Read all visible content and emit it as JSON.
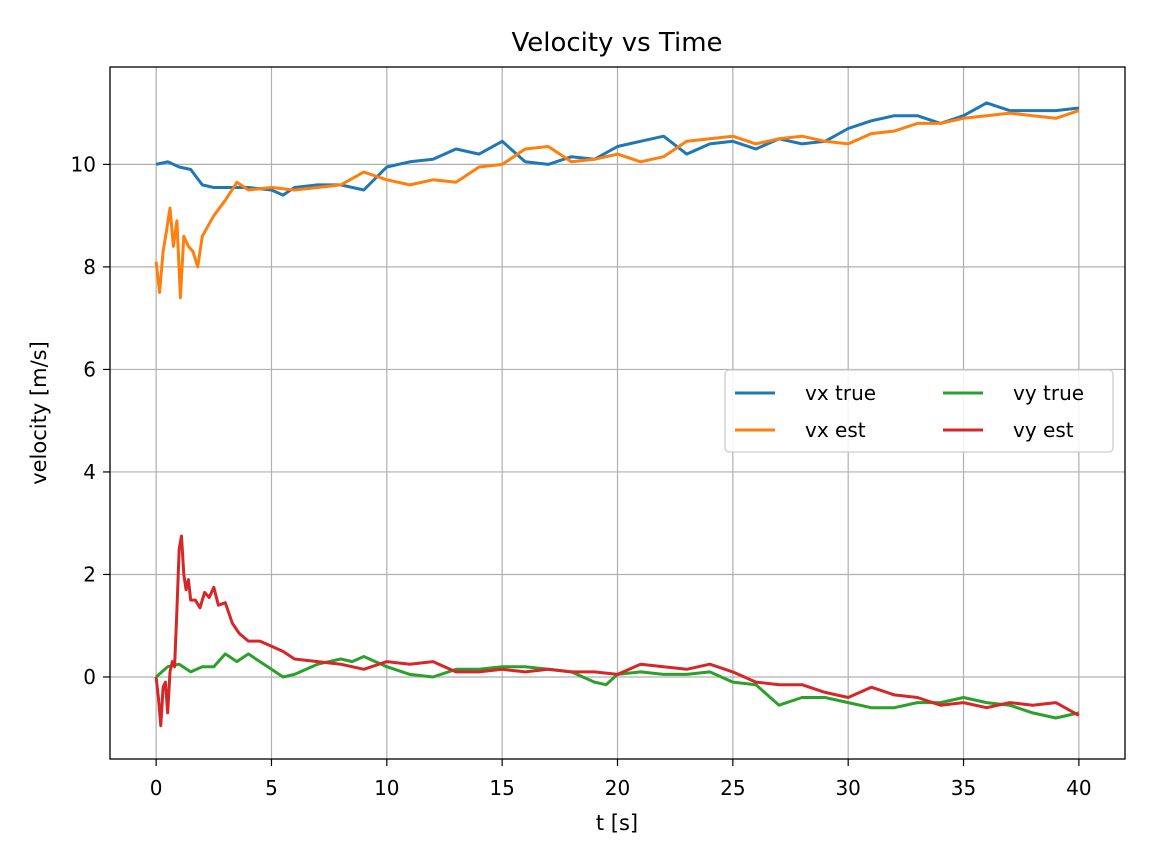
{
  "chart_data": {
    "type": "line",
    "title": "Velocity vs Time",
    "xlabel": "t [s]",
    "ylabel": "velocity [m/s]",
    "xlim": [
      -2,
      42
    ],
    "ylim": [
      -1.6,
      11.9
    ],
    "xticks": [
      0,
      5,
      10,
      15,
      20,
      25,
      30,
      35,
      40
    ],
    "yticks": [
      0,
      2,
      4,
      6,
      8,
      10
    ],
    "grid": true,
    "legend_position": "center-right",
    "legend_columns": 2,
    "series": [
      {
        "name": "vx true",
        "color": "#1f77b4",
        "x": [
          0,
          0.5,
          1,
          1.5,
          2,
          2.5,
          3,
          4,
          5,
          5.5,
          6,
          7,
          8,
          9,
          10,
          11,
          12,
          13,
          14,
          15,
          16,
          17,
          18,
          19,
          20,
          21,
          22,
          23,
          24,
          25,
          26,
          27,
          28,
          29,
          30,
          31,
          32,
          33,
          34,
          35,
          36,
          37,
          38,
          39,
          40
        ],
        "y": [
          10.0,
          10.05,
          9.95,
          9.9,
          9.6,
          9.55,
          9.55,
          9.55,
          9.5,
          9.4,
          9.55,
          9.6,
          9.6,
          9.5,
          9.95,
          10.05,
          10.1,
          10.3,
          10.2,
          10.45,
          10.05,
          10.0,
          10.15,
          10.1,
          10.35,
          10.45,
          10.55,
          10.2,
          10.4,
          10.45,
          10.3,
          10.5,
          10.4,
          10.45,
          10.7,
          10.85,
          10.95,
          10.95,
          10.8,
          10.95,
          11.2,
          11.05,
          11.05,
          11.05,
          11.1
        ]
      },
      {
        "name": "vx est",
        "color": "#ff7f0e",
        "x": [
          0,
          0.15,
          0.3,
          0.45,
          0.6,
          0.75,
          0.9,
          1.05,
          1.2,
          1.4,
          1.6,
          1.8,
          2,
          2.5,
          3,
          3.5,
          4,
          5,
          6,
          7,
          8,
          9,
          10,
          11,
          12,
          13,
          14,
          15,
          16,
          17,
          18,
          19,
          20,
          21,
          22,
          23,
          24,
          25,
          26,
          27,
          28,
          29,
          30,
          31,
          32,
          33,
          34,
          35,
          36,
          37,
          38,
          39,
          40
        ],
        "y": [
          8.1,
          7.5,
          8.3,
          8.7,
          9.15,
          8.4,
          8.9,
          7.4,
          8.6,
          8.4,
          8.3,
          8.0,
          8.6,
          9.0,
          9.3,
          9.65,
          9.5,
          9.55,
          9.5,
          9.55,
          9.6,
          9.85,
          9.7,
          9.6,
          9.7,
          9.65,
          9.95,
          10.0,
          10.3,
          10.35,
          10.05,
          10.1,
          10.2,
          10.05,
          10.15,
          10.45,
          10.5,
          10.55,
          10.4,
          10.5,
          10.55,
          10.45,
          10.4,
          10.6,
          10.65,
          10.8,
          10.8,
          10.9,
          10.95,
          11.0,
          10.95,
          10.9,
          11.05
        ]
      },
      {
        "name": "vy true",
        "color": "#2ca02c",
        "x": [
          0,
          0.5,
          1,
          1.5,
          2,
          2.5,
          3,
          3.5,
          4,
          4.5,
          5,
          5.5,
          6,
          7,
          8,
          8.5,
          9,
          10,
          11,
          12,
          13,
          14,
          15,
          16,
          17,
          18,
          19,
          19.5,
          20,
          21,
          22,
          23,
          24,
          25,
          26,
          27,
          28,
          29,
          30,
          31,
          32,
          33,
          34,
          35,
          36,
          37,
          38,
          39,
          40
        ],
        "y": [
          0.0,
          0.2,
          0.25,
          0.1,
          0.2,
          0.2,
          0.45,
          0.3,
          0.45,
          0.3,
          0.15,
          0.0,
          0.05,
          0.25,
          0.35,
          0.3,
          0.4,
          0.2,
          0.05,
          0.0,
          0.15,
          0.15,
          0.2,
          0.2,
          0.15,
          0.1,
          -0.1,
          -0.15,
          0.05,
          0.1,
          0.05,
          0.05,
          0.1,
          -0.1,
          -0.15,
          -0.55,
          -0.4,
          -0.4,
          -0.5,
          -0.6,
          -0.6,
          -0.5,
          -0.5,
          -0.4,
          -0.5,
          -0.55,
          -0.7,
          -0.8,
          -0.7
        ]
      },
      {
        "name": "vy est",
        "color": "#d62728",
        "x": [
          0,
          0.1,
          0.2,
          0.3,
          0.4,
          0.5,
          0.6,
          0.7,
          0.8,
          0.9,
          1.0,
          1.1,
          1.2,
          1.3,
          1.4,
          1.5,
          1.7,
          1.9,
          2.1,
          2.3,
          2.5,
          2.7,
          3.0,
          3.3,
          3.6,
          4.0,
          4.5,
          5.0,
          5.5,
          6,
          7,
          8,
          9,
          10,
          11,
          12,
          13,
          14,
          15,
          16,
          17,
          18,
          19,
          20,
          21,
          22,
          23,
          24,
          25,
          26,
          27,
          28,
          29,
          30,
          31,
          32,
          33,
          34,
          35,
          36,
          37,
          38,
          39,
          40
        ],
        "y": [
          0.0,
          -0.4,
          -0.95,
          -0.2,
          -0.1,
          -0.7,
          0.1,
          0.3,
          0.2,
          1.3,
          2.5,
          2.75,
          2.0,
          1.7,
          1.9,
          1.5,
          1.5,
          1.35,
          1.65,
          1.55,
          1.75,
          1.4,
          1.45,
          1.05,
          0.85,
          0.7,
          0.7,
          0.6,
          0.5,
          0.35,
          0.3,
          0.25,
          0.15,
          0.3,
          0.25,
          0.3,
          0.1,
          0.1,
          0.15,
          0.1,
          0.15,
          0.1,
          0.1,
          0.05,
          0.25,
          0.2,
          0.15,
          0.25,
          0.1,
          -0.1,
          -0.15,
          -0.15,
          -0.3,
          -0.4,
          -0.2,
          -0.35,
          -0.4,
          -0.55,
          -0.5,
          -0.6,
          -0.5,
          -0.55,
          -0.5,
          -0.75
        ]
      }
    ]
  }
}
